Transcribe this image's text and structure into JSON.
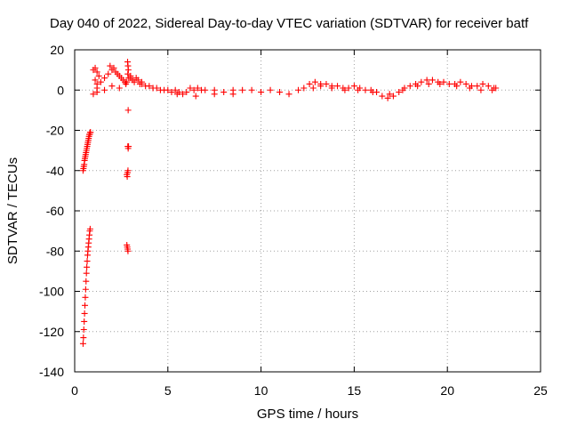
{
  "chart_data": {
    "type": "scatter",
    "title": "Day 040 of 2022, Sidereal Day-to-day VTEC variation (SDTVAR) for receiver batf",
    "xlabel": "GPS time / hours",
    "ylabel": "SDTVAR / TECUs",
    "xlim": [
      0,
      25
    ],
    "ylim": [
      -140,
      20
    ],
    "x_ticks": [
      0,
      5,
      10,
      15,
      20,
      25
    ],
    "y_ticks": [
      20,
      0,
      -20,
      -40,
      -60,
      -80,
      -100,
      -120,
      -140
    ],
    "x_tick_labels": [
      "0",
      "5",
      "10",
      "15",
      "20",
      "25"
    ],
    "y_tick_labels": [
      "20",
      "0",
      "-20",
      "-40",
      "-60",
      "-80",
      "-100",
      "-120",
      "-140"
    ],
    "grid": true,
    "marker": "+",
    "color": "#ff0000",
    "series": [
      {
        "x": [
          0.45,
          0.47,
          0.49,
          0.51,
          0.53,
          0.55,
          0.57,
          0.59,
          0.61,
          0.63,
          0.65,
          0.67,
          0.69,
          0.71,
          0.73,
          0.75,
          0.77,
          0.79,
          0.81,
          0.83,
          0.45,
          0.47,
          0.49,
          0.51,
          0.53,
          0.55,
          0.57,
          0.59,
          0.61,
          0.63,
          0.65,
          0.67,
          0.69,
          0.71,
          0.73,
          0.75,
          0.77,
          0.79,
          0.81,
          0.83,
          0.85,
          2.8,
          2.82,
          2.84,
          2.86,
          2.8,
          2.82,
          2.84,
          2.86,
          2.85,
          2.87,
          2.89,
          2.87,
          2.84,
          2.86,
          2.88,
          2.85,
          1.0,
          1.1,
          1.2,
          1.3,
          1.1,
          1.2,
          1.0,
          1.2,
          1.4,
          1.6,
          1.8,
          1.9,
          2.0,
          2.1,
          2.2,
          2.3,
          2.4,
          2.5,
          2.6,
          2.7,
          2.75,
          2.8,
          2.9,
          3.0,
          3.1,
          3.2,
          3.3,
          3.4,
          3.5,
          3.6,
          3.8,
          4.0,
          4.2,
          4.4,
          4.6,
          4.8,
          5.0,
          5.2,
          5.4,
          5.6,
          5.8,
          6.0,
          6.2,
          6.4,
          6.6,
          6.8,
          7.0,
          7.5,
          8.0,
          8.5,
          9.0,
          9.5,
          10.0,
          10.5,
          11.0,
          11.5,
          12.0,
          12.3,
          12.6,
          12.9,
          13.2,
          13.5,
          13.8,
          14.1,
          14.4,
          14.7,
          15.0,
          15.3,
          15.6,
          15.9,
          16.2,
          16.5,
          16.8,
          17.1,
          17.4,
          17.7,
          18.0,
          18.3,
          18.6,
          18.9,
          19.2,
          19.5,
          19.8,
          20.1,
          20.4,
          20.7,
          21.0,
          21.3,
          21.6,
          21.9,
          22.2,
          22.5,
          22.6,
          5.5,
          6.5,
          7.5,
          8.5,
          12.8,
          13.2,
          13.8,
          14.5,
          15.2,
          16.0,
          16.9,
          17.6,
          18.4,
          19.0,
          19.6,
          20.5,
          21.2,
          21.8,
          22.4,
          1.2,
          1.6,
          2.0,
          2.4,
          3.0,
          3.6,
          4.2
        ],
        "y": [
          -126,
          -123,
          -119,
          -115,
          -111,
          -107,
          -103,
          -99,
          -95,
          -91,
          -88,
          -85,
          -82,
          -80,
          -78,
          -76,
          -74,
          -72,
          -70,
          -69,
          -40,
          -39,
          -38,
          -37,
          -35,
          -34,
          -33,
          -32,
          -31,
          -30,
          -29,
          -28,
          -27,
          -26,
          -25,
          -24,
          -23,
          -22,
          -22,
          -21,
          -21,
          -77,
          -78,
          -79,
          -80,
          -42,
          -43,
          -41,
          -40,
          -28,
          -29,
          -28,
          -10,
          14,
          12,
          10,
          8,
          10,
          11,
          9,
          7,
          5,
          3,
          -2,
          -1,
          4,
          6,
          8,
          12,
          10,
          11,
          9,
          8,
          7,
          6,
          5,
          4,
          3,
          4,
          6,
          7,
          5,
          4,
          6,
          5,
          3,
          4,
          2,
          2,
          1,
          1,
          0,
          0,
          0,
          -1,
          0,
          -1,
          -2,
          -1,
          1,
          0,
          1,
          0,
          0,
          0,
          -1,
          0,
          0,
          0,
          -1,
          0,
          -1,
          -2,
          0,
          1,
          3,
          4,
          3,
          3,
          2,
          2,
          1,
          1,
          2,
          1,
          0,
          0,
          -1,
          -3,
          -4,
          -3,
          -1,
          1,
          2,
          3,
          4,
          5,
          5,
          4,
          4,
          3,
          3,
          4,
          3,
          2,
          2,
          3,
          2,
          1,
          1,
          -2,
          -3,
          -2,
          -2,
          1,
          2,
          1,
          0,
          0,
          -1,
          -2,
          0,
          2,
          3,
          3,
          2,
          1,
          0,
          0,
          1,
          0,
          2,
          1,
          6,
          3,
          1
        ]
      }
    ]
  }
}
